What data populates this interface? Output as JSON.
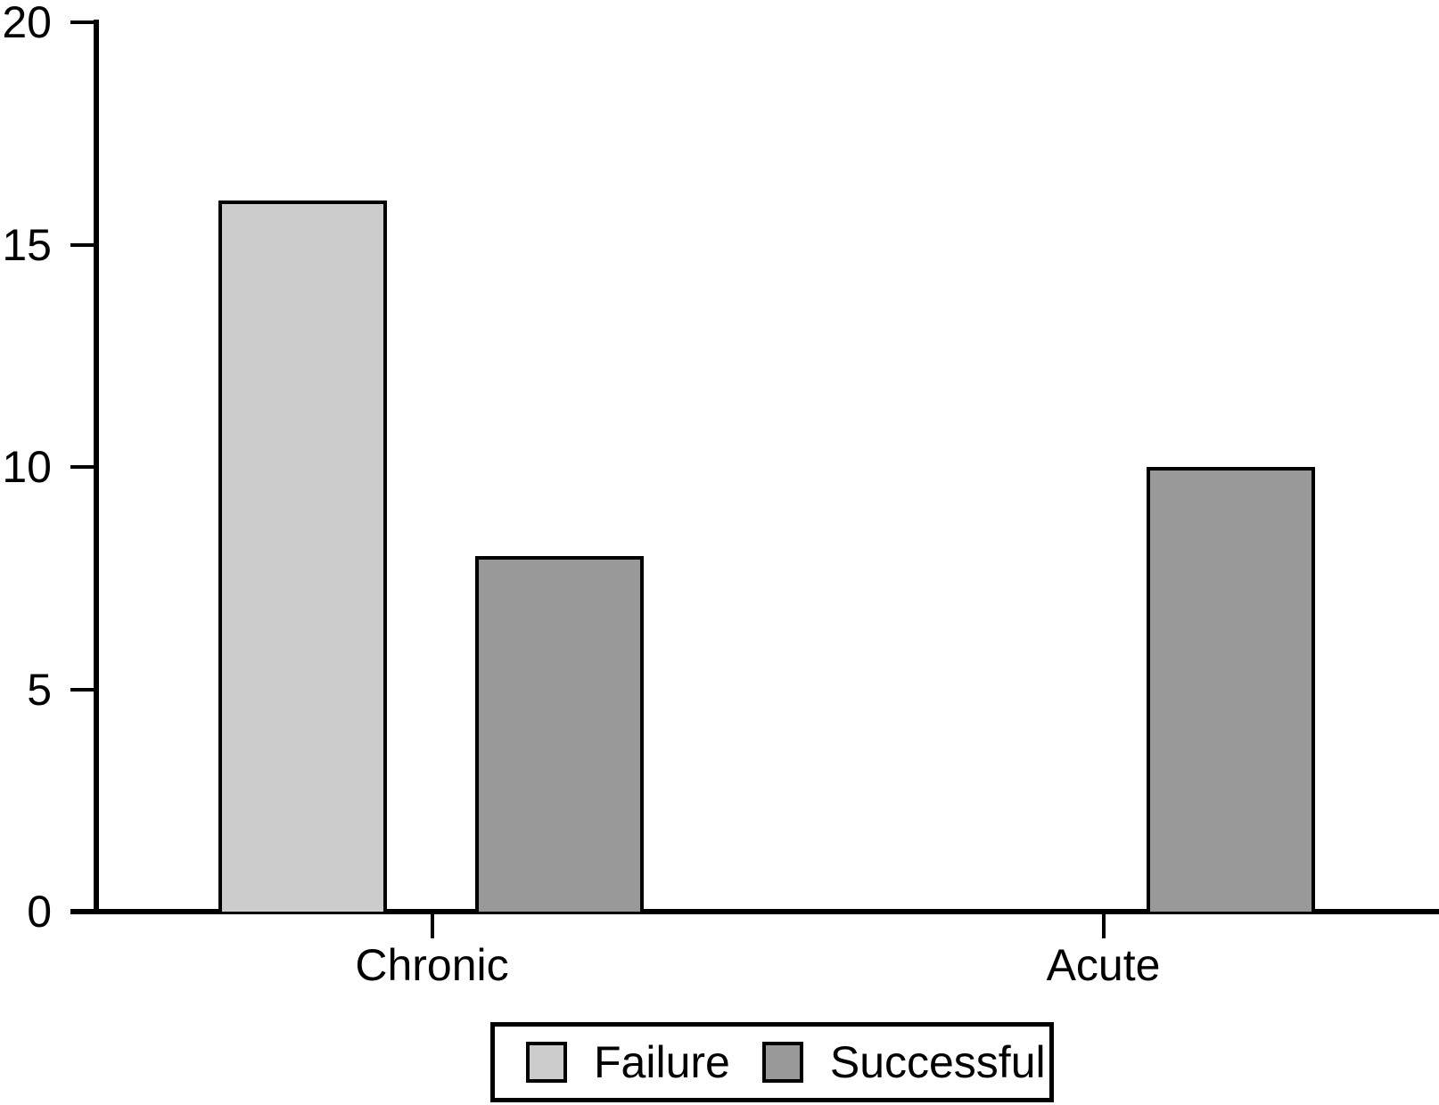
{
  "chart_data": {
    "type": "bar",
    "title": "",
    "categories": [
      "Chronic",
      "Acute"
    ],
    "series": [
      {
        "name": "Failure",
        "color": "#cccccc",
        "values": [
          16,
          0
        ]
      },
      {
        "name": "Successful",
        "color": "#999999",
        "values": [
          8,
          10
        ]
      }
    ],
    "xlabel": "",
    "ylabel": "",
    "ylim": [
      0,
      20
    ],
    "yticks": [
      0,
      5,
      10,
      15,
      20
    ],
    "grid": false,
    "legend_position": "bottom-center",
    "axis_color": "#000000",
    "bar_border_color": "#000000",
    "text_color": "#000000",
    "background_color": "#ffffff"
  }
}
